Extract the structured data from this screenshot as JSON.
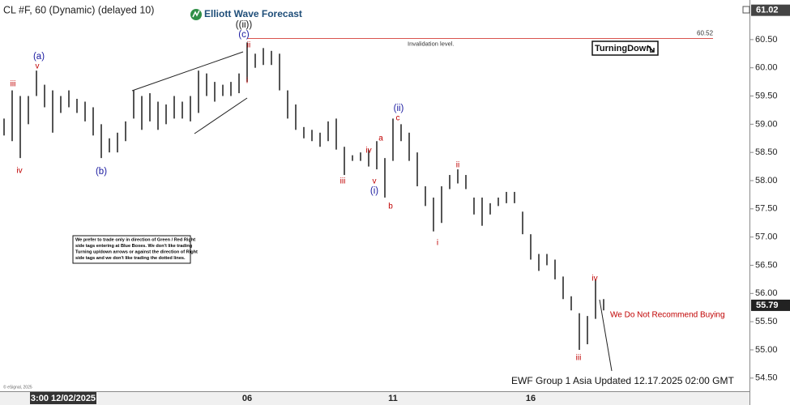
{
  "chart_data": {
    "type": "hilo",
    "title": "CL #F, 60 (Dynamic) (delayed 10)",
    "brand": "Elliott Wave Forecast",
    "categories": [
      null,
      null,
      null,
      null,
      null,
      null,
      null,
      "3:00 12/02/2025",
      null,
      null,
      null,
      null,
      null,
      null,
      null,
      null,
      null,
      null,
      null,
      null,
      null,
      null,
      null,
      null,
      null,
      null,
      null,
      null,
      null,
      null,
      "06",
      null,
      null,
      null,
      null,
      null,
      null,
      null,
      null,
      null,
      null,
      null,
      null,
      null,
      null,
      null,
      null,
      null,
      "11",
      null,
      null,
      null,
      null,
      null,
      null,
      null,
      null,
      null,
      null,
      null,
      null,
      null,
      null,
      null,
      null,
      "16",
      null,
      null,
      null,
      null,
      null,
      null,
      null,
      null,
      null
    ],
    "high": [
      59.1,
      59.6,
      59.5,
      59.5,
      59.95,
      59.7,
      59.6,
      59.5,
      59.6,
      59.45,
      59.4,
      59.3,
      59.0,
      58.75,
      58.85,
      59.05,
      59.6,
      59.5,
      59.55,
      59.4,
      59.35,
      59.5,
      59.4,
      59.5,
      59.95,
      59.9,
      59.75,
      59.7,
      59.75,
      59.9,
      60.45,
      60.25,
      60.35,
      60.3,
      60.25,
      59.6,
      59.35,
      58.95,
      58.9,
      58.85,
      59.05,
      59.1,
      58.6,
      58.45,
      58.5,
      58.55,
      58.7,
      58.4,
      59.1,
      59.0,
      58.85,
      58.5,
      57.9,
      57.7,
      57.9,
      58.1,
      58.2,
      58.1,
      57.7,
      57.7,
      57.6,
      57.7,
      57.8,
      57.8,
      57.45,
      57.05,
      56.7,
      56.7,
      56.6,
      56.3,
      55.95,
      55.65,
      55.6,
      56.25,
      55.9
    ],
    "low": [
      58.8,
      58.7,
      58.4,
      59.0,
      59.5,
      59.3,
      58.85,
      59.2,
      59.3,
      59.2,
      59.05,
      58.8,
      58.4,
      58.5,
      58.5,
      58.7,
      59.1,
      58.9,
      59.05,
      58.9,
      59.0,
      59.1,
      59.1,
      59.05,
      59.2,
      59.5,
      59.4,
      59.5,
      59.5,
      59.55,
      59.75,
      60.0,
      60.05,
      60.05,
      59.6,
      59.1,
      58.9,
      58.75,
      58.7,
      58.6,
      58.7,
      58.55,
      58.1,
      58.35,
      58.35,
      58.25,
      58.2,
      57.7,
      58.35,
      58.7,
      58.35,
      57.9,
      57.55,
      57.1,
      57.25,
      57.85,
      57.95,
      57.85,
      57.4,
      57.2,
      57.4,
      57.55,
      57.6,
      57.6,
      57.05,
      56.6,
      56.4,
      56.5,
      56.25,
      55.9,
      55.7,
      55.0,
      55.1,
      55.55,
      55.7
    ],
    "bar_color": "#2b2b2b",
    "ylim": [
      54.31,
      61.13
    ],
    "yticks": [
      {
        "value": 54.5,
        "label": "54.50"
      },
      {
        "value": 55,
        "label": "55.00"
      },
      {
        "value": 55.5,
        "label": "55.50"
      },
      {
        "value": 56,
        "label": "56.00"
      },
      {
        "value": 56.5,
        "label": "56.50"
      },
      {
        "value": 57,
        "label": "57.00"
      },
      {
        "value": 57.5,
        "label": "57.50"
      },
      {
        "value": 58,
        "label": "58.00"
      },
      {
        "value": 58.5,
        "label": "58.50"
      },
      {
        "value": 59,
        "label": "59.00"
      },
      {
        "value": 59.5,
        "label": "59.50"
      },
      {
        "value": 60,
        "label": "60.00"
      },
      {
        "value": 60.5,
        "label": "60.50"
      }
    ],
    "invalidation": {
      "value": 60.52,
      "text": "Invalidation level.",
      "color": "#d9534f"
    },
    "high_tag": 61.02,
    "last_price": 55.79,
    "signal": "TurningDown",
    "warning": "We Do Not Recommend Buying",
    "footer": "EWF Group 1 Asia Updated 12.17.2025 02:00 GMT",
    "copyright": "© eSignal, 2025",
    "note": [
      "We prefer to trade only in direction of Green / Red Right",
      "side tags entering at Blue Boxes. We don't like trading",
      "Turning up/down arrows or against the direction of Right",
      "side tags and we don't like trading the dotted lines."
    ],
    "annotations": [
      {
        "text": "(a)",
        "color": "#1a1aa0"
      },
      {
        "text": "v",
        "color": "#c00000"
      },
      {
        "text": "iii",
        "color": "#c00000"
      },
      {
        "text": "iv",
        "color": "#c00000"
      },
      {
        "text": "(b)",
        "color": "#1a1aa0"
      },
      {
        "text": "((ii))",
        "color": "#111111"
      },
      {
        "text": "(c)",
        "color": "#1a1aa0"
      },
      {
        "text": "ii",
        "color": "#c00000"
      },
      {
        "text": "i",
        "color": "#c00000"
      },
      {
        "text": "(ii)",
        "color": "#1a1aa0"
      },
      {
        "text": "c",
        "color": "#c00000"
      },
      {
        "text": "a",
        "color": "#c00000"
      },
      {
        "text": "iv",
        "color": "#c00000"
      },
      {
        "text": "v",
        "color": "#c00000"
      },
      {
        "text": "(i)",
        "color": "#1a1aa0"
      },
      {
        "text": "iii",
        "color": "#c00000"
      },
      {
        "text": "b",
        "color": "#c00000"
      },
      {
        "text": "ii",
        "color": "#c00000"
      },
      {
        "text": "i",
        "color": "#c00000"
      },
      {
        "text": "iv",
        "color": "#c00000"
      },
      {
        "text": "iii",
        "color": "#c00000"
      }
    ]
  }
}
